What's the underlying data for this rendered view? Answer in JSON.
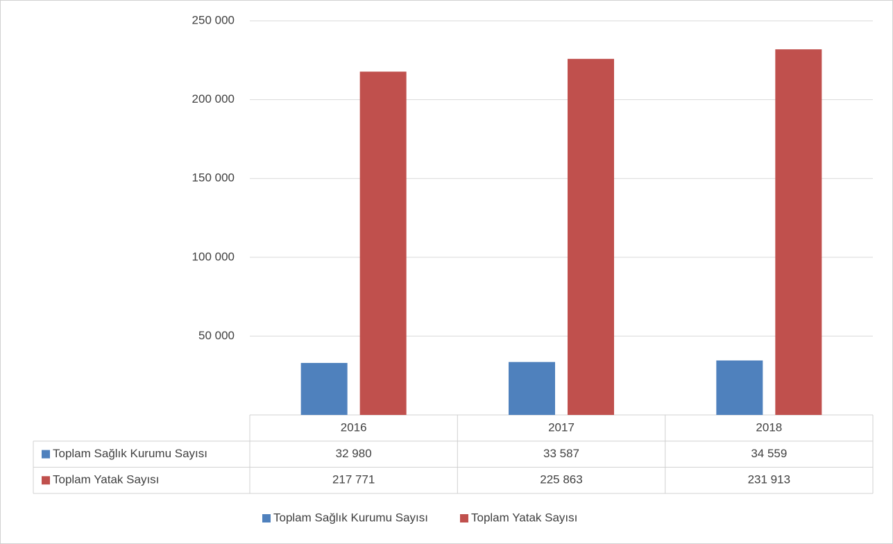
{
  "chart_data": {
    "type": "bar",
    "categories": [
      "2016",
      "2017",
      "2018"
    ],
    "series": [
      {
        "name": "Toplam Sağlık Kurumu Sayısı",
        "color": "#4f81bd",
        "values": [
          32980,
          33587,
          34559
        ],
        "value_labels": [
          "32 980",
          "33 587",
          "34 559"
        ]
      },
      {
        "name": "Toplam Yatak Sayısı",
        "color": "#c0504d",
        "values": [
          217771,
          225863,
          231913
        ],
        "value_labels": [
          "217 771",
          "225 863",
          "231 913"
        ]
      }
    ],
    "ylim": [
      0,
      250000
    ],
    "yticks": [
      {
        "value": 50000,
        "label": "50 000"
      },
      {
        "value": 100000,
        "label": "100 000"
      },
      {
        "value": 150000,
        "label": "150 000"
      },
      {
        "value": 200000,
        "label": "200 000"
      },
      {
        "value": 250000,
        "label": "250 000"
      }
    ],
    "grid": true,
    "legend": "bottom"
  }
}
